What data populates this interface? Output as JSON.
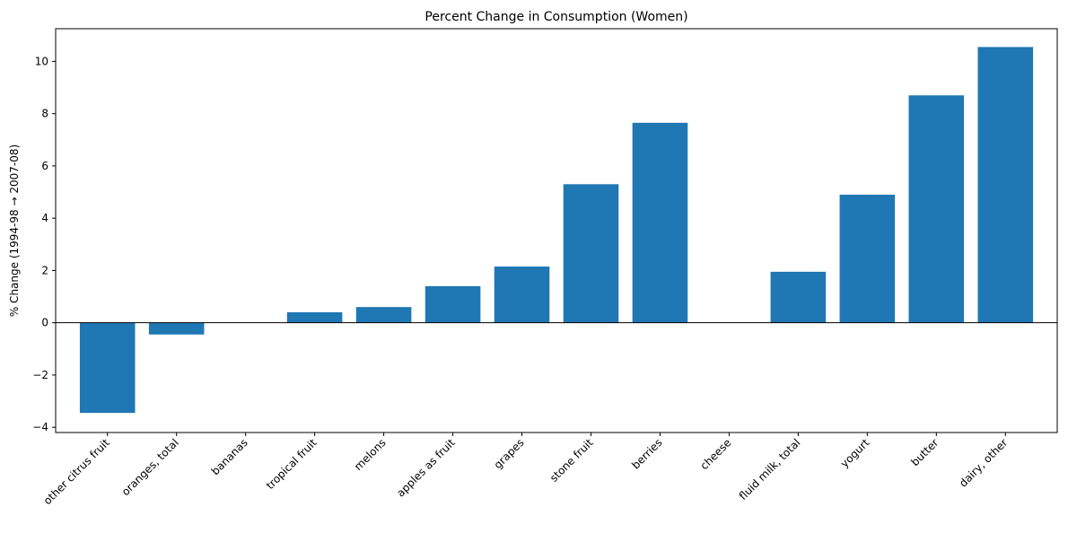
{
  "chart_data": {
    "type": "bar",
    "title": "Percent Change in Consumption (Women)",
    "xlabel": "",
    "ylabel": "% Change (1994-98 → 2007-08)",
    "categories": [
      "other citrus fruit",
      "oranges, total",
      "bananas",
      "tropical fruit",
      "melons",
      "apples as fruit",
      "grapes",
      "stone fruit",
      "berries",
      "cheese",
      "fluid milk, total",
      "yogurt",
      "butter",
      "dairy, other"
    ],
    "values": [
      -3.45,
      -0.45,
      0.0,
      0.4,
      0.6,
      1.4,
      2.15,
      5.3,
      7.65,
      0.0,
      1.95,
      4.9,
      8.7,
      10.55
    ],
    "ylim": [
      -4.2,
      11.25
    ],
    "yticks": [
      -4,
      -2,
      0,
      2,
      4,
      6,
      8,
      10
    ],
    "ytick_labels": [
      "−4",
      "−2",
      "0",
      "2",
      "4",
      "6",
      "8",
      "10"
    ],
    "bar_color": "#1f77b4",
    "grid": false,
    "zero_line": true
  }
}
